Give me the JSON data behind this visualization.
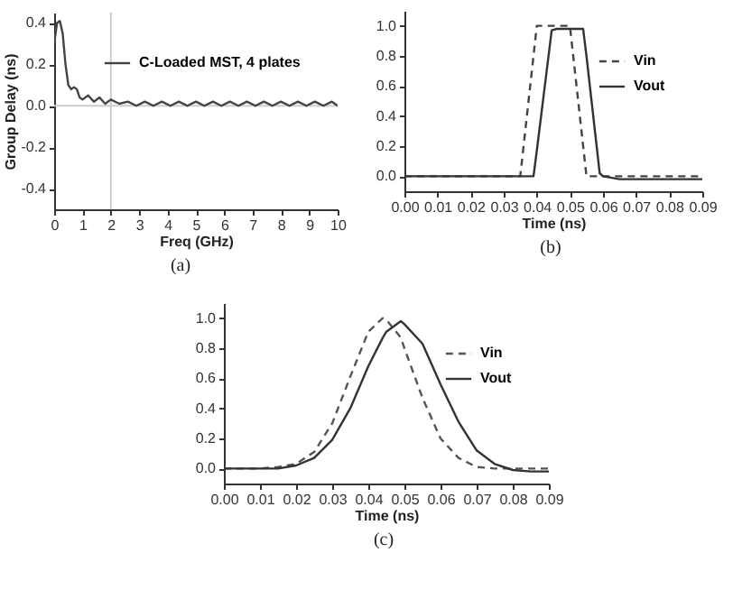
{
  "chart_data": [
    {
      "type": "line",
      "xlabel": "Freq (GHz)",
      "ylabel": "Group Delay (ns)",
      "annotations": [
        "(a)"
      ],
      "legend": "top right",
      "grid": false,
      "x": [
        0,
        0.1,
        0.2,
        0.3,
        0.4,
        0.5,
        0.6,
        0.7,
        0.8,
        0.9,
        1.0,
        1.2,
        1.4,
        1.6,
        1.8,
        2.0,
        2.3,
        2.6,
        2.9,
        3.2,
        3.5,
        3.8,
        4.1,
        4.4,
        4.7,
        5.0,
        5.3,
        5.6,
        5.9,
        6.2,
        6.5,
        6.8,
        7.1,
        7.4,
        7.7,
        8.0,
        8.3,
        8.6,
        8.9,
        9.2,
        9.5,
        9.8,
        10
      ],
      "series": [
        {
          "name": "C-Loaded MST, 4 plates",
          "color": "#444444",
          "line_style": "solid",
          "values": [
            0.3,
            0.4,
            0.41,
            0.35,
            0.2,
            0.1,
            0.08,
            0.09,
            0.08,
            0.04,
            0.03,
            0.05,
            0.02,
            0.04,
            0.01,
            0.03,
            0.01,
            0.02,
            0.0,
            0.02,
            0.0,
            0.02,
            0.0,
            0.02,
            0.0,
            0.02,
            0.0,
            0.02,
            0.0,
            0.02,
            0.0,
            0.02,
            0.0,
            0.02,
            0.0,
            0.02,
            0.0,
            0.02,
            0.0,
            0.02,
            0.0,
            0.02,
            0.0
          ]
        }
      ],
      "xlim": [
        0,
        10
      ],
      "xticks": [
        0,
        1,
        2,
        3,
        4,
        5,
        6,
        7,
        8,
        9,
        10
      ],
      "ylim": [
        -0.5,
        0.45
      ],
      "yticks": [
        {
          "value": -0.4,
          "label": "-0.4"
        },
        {
          "value": -0.2,
          "label": "-0.2"
        },
        {
          "value": 0,
          "label": "0.0"
        },
        {
          "value": 0.2,
          "label": "0.2"
        },
        {
          "value": 0.4,
          "label": "0.4"
        }
      ],
      "ref_lines": [
        {
          "axis": "y",
          "value": 0,
          "color": "#cccccc"
        },
        {
          "axis": "x",
          "value": 2,
          "color": "#cccccc"
        }
      ]
    },
    {
      "type": "line",
      "xlabel": "Time (ns)",
      "annotations": [
        "(b)"
      ],
      "legend": "top right",
      "grid": false,
      "x": [
        0,
        0.035,
        0.039,
        0.04,
        0.0445,
        0.046,
        0.05,
        0.054,
        0.055,
        0.059,
        0.06,
        0.065,
        0.07,
        0.08,
        0.09
      ],
      "series": [
        {
          "name": "Vin",
          "color": "#444444",
          "line_style": "dashed",
          "values": [
            0,
            0,
            0.8,
            1.0,
            1.0,
            1.0,
            1.0,
            0.2,
            0.0,
            0.0,
            0.0,
            0.0,
            0.0,
            0.0,
            0.0
          ]
        },
        {
          "name": "Vout",
          "color": "#333333",
          "line_style": "solid",
          "values": [
            0,
            0,
            0,
            0.17,
            0.97,
            0.98,
            0.98,
            0.98,
            0.8,
            0.02,
            0.0,
            -0.02,
            -0.02,
            -0.02,
            -0.02
          ]
        }
      ],
      "xlim": [
        0,
        0.09
      ],
      "xticks": [
        {
          "value": 0,
          "label": "0.00"
        },
        {
          "value": 0.01,
          "label": "0.01"
        },
        {
          "value": 0.02,
          "label": "0.02"
        },
        {
          "value": 0.03,
          "label": "0.03"
        },
        {
          "value": 0.04,
          "label": "0.04"
        },
        {
          "value": 0.05,
          "label": "0.05"
        },
        {
          "value": 0.06,
          "label": "0.06"
        },
        {
          "value": 0.07,
          "label": "0.07"
        },
        {
          "value": 0.08,
          "label": "0.08"
        },
        {
          "value": 0.09,
          "label": "0.09"
        }
      ],
      "ylim": [
        -0.1,
        1.1
      ],
      "yticks": [
        {
          "value": 0,
          "label": "0.0"
        },
        {
          "value": 0.2,
          "label": "0.2"
        },
        {
          "value": 0.4,
          "label": "0.4"
        },
        {
          "value": 0.6,
          "label": "0.6"
        },
        {
          "value": 0.8,
          "label": "0.8"
        },
        {
          "value": 1,
          "label": "1.0"
        }
      ]
    },
    {
      "type": "line",
      "xlabel": "Time (ns)",
      "annotations": [
        "(c)"
      ],
      "legend": "top right",
      "grid": false,
      "x": [
        0,
        0.005,
        0.01,
        0.015,
        0.02,
        0.025,
        0.03,
        0.035,
        0.04,
        0.044,
        0.045,
        0.049,
        0.05,
        0.055,
        0.06,
        0.065,
        0.07,
        0.075,
        0.08,
        0.085,
        0.09
      ],
      "series": [
        {
          "name": "Vin",
          "color": "#555555",
          "line_style": "dashed",
          "values": [
            0,
            0,
            0,
            0.01,
            0.03,
            0.11,
            0.3,
            0.61,
            0.91,
            1.0,
            0.99,
            0.87,
            0.8,
            0.47,
            0.2,
            0.07,
            0.01,
            0.0,
            0.0,
            0.0,
            0.0
          ]
        },
        {
          "name": "Vout",
          "color": "#333333",
          "line_style": "solid",
          "values": [
            0,
            0,
            0,
            0.0,
            0.02,
            0.07,
            0.19,
            0.4,
            0.68,
            0.87,
            0.91,
            0.98,
            0.96,
            0.83,
            0.56,
            0.31,
            0.12,
            0.03,
            -0.01,
            -0.02,
            -0.02
          ]
        }
      ],
      "xlim": [
        0,
        0.09
      ],
      "xticks": [
        {
          "value": 0,
          "label": "0.00"
        },
        {
          "value": 0.01,
          "label": "0.01"
        },
        {
          "value": 0.02,
          "label": "0.02"
        },
        {
          "value": 0.03,
          "label": "0.03"
        },
        {
          "value": 0.04,
          "label": "0.04"
        },
        {
          "value": 0.05,
          "label": "0.05"
        },
        {
          "value": 0.06,
          "label": "0.06"
        },
        {
          "value": 0.07,
          "label": "0.07"
        },
        {
          "value": 0.08,
          "label": "0.08"
        },
        {
          "value": 0.09,
          "label": "0.09"
        }
      ],
      "ylim": [
        -0.1,
        1.1
      ],
      "yticks": [
        {
          "value": 0,
          "label": "0.0"
        },
        {
          "value": 0.2,
          "label": "0.2"
        },
        {
          "value": 0.4,
          "label": "0.4"
        },
        {
          "value": 0.6,
          "label": "0.6"
        },
        {
          "value": 0.8,
          "label": "0.8"
        },
        {
          "value": 1,
          "label": "1.0"
        }
      ]
    }
  ]
}
